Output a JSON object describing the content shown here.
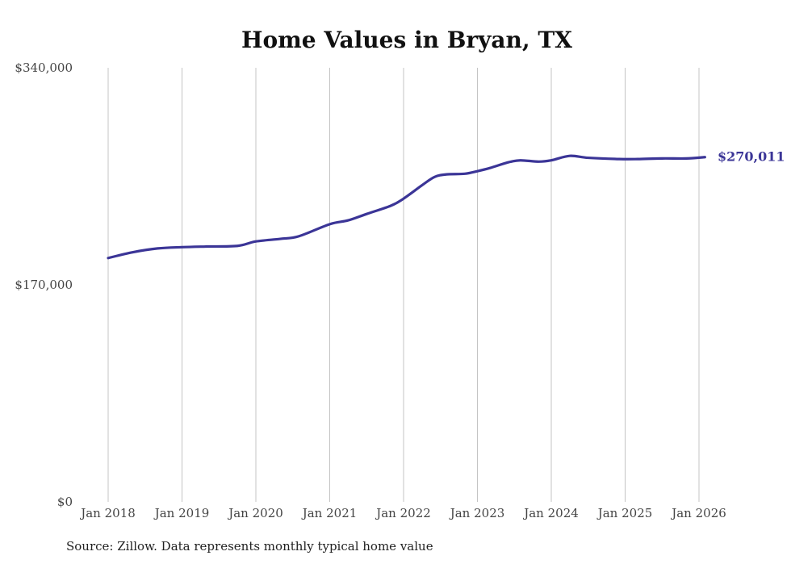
{
  "chart_data": {
    "type": "line",
    "title": "Home Values in Bryan, TX",
    "xlabel": "",
    "ylabel": "",
    "ylim": [
      0,
      340000
    ],
    "y_ticks": [
      "$0",
      "$170,000",
      "$340,000"
    ],
    "y_tick_values": [
      0,
      170000,
      340000
    ],
    "x_ticks": [
      "Jan 2018",
      "Jan 2019",
      "Jan 2020",
      "Jan 2021",
      "Jan 2022",
      "Jan 2023",
      "Jan 2024",
      "Jan 2025",
      "Jan 2026"
    ],
    "x_tick_values": [
      2018,
      2019,
      2020,
      2021,
      2022,
      2023,
      2024,
      2025,
      2026
    ],
    "grid": "vertical",
    "series": [
      {
        "name": "Typical home value",
        "color": "#3b3597",
        "x": [
          2018.0,
          2018.33,
          2018.67,
          2019.0,
          2019.33,
          2019.75,
          2020.0,
          2020.33,
          2020.58,
          2021.0,
          2021.25,
          2021.5,
          2021.83,
          2022.0,
          2022.25,
          2022.42,
          2022.58,
          2022.83,
          2023.0,
          2023.17,
          2023.42,
          2023.58,
          2023.83,
          2024.0,
          2024.25,
          2024.5,
          2024.92,
          2025.17,
          2025.5,
          2025.83,
          2026.08
        ],
        "y": [
          191000,
          195500,
          198500,
          199500,
          200000,
          200500,
          204000,
          206000,
          208000,
          217500,
          220500,
          225500,
          232000,
          237500,
          248000,
          254500,
          256500,
          257000,
          259000,
          261500,
          266000,
          267500,
          266500,
          267500,
          271000,
          269500,
          268500,
          268500,
          269000,
          269000,
          270011
        ]
      }
    ],
    "end_label": "$270,011",
    "source": "Source: Zillow. Data represents monthly typical home value"
  }
}
